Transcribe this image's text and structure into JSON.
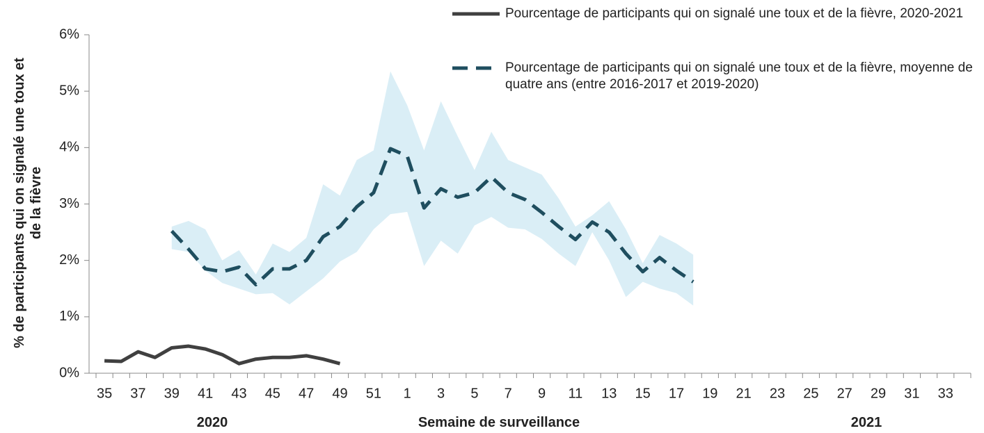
{
  "chart_data": {
    "type": "line",
    "ylabel": "% de participants qui on signalé une toux et de la fièvre",
    "xlabel": "Semaine de surveillance",
    "annotations": [
      "2020",
      "2021"
    ],
    "categories": [
      "35",
      null,
      "37",
      null,
      "39",
      null,
      "41",
      null,
      "43",
      null,
      "45",
      null,
      "47",
      null,
      "49",
      null,
      "51",
      null,
      "1",
      null,
      "3",
      null,
      "5",
      null,
      "7",
      null,
      "9",
      null,
      "11",
      null,
      "13",
      null,
      "15",
      null,
      "17",
      null,
      "19",
      null,
      "21",
      null,
      "23",
      null,
      "25",
      null,
      "27",
      null,
      "29",
      null,
      "31",
      null,
      "33",
      null
    ],
    "ylim": [
      0,
      6
    ],
    "yticks": [
      {
        "value": 0,
        "label": "0%"
      },
      {
        "value": 1,
        "label": "1%"
      },
      {
        "value": 2,
        "label": "2%"
      },
      {
        "value": 3,
        "label": "3%"
      },
      {
        "value": 4,
        "label": "4%"
      },
      {
        "value": 5,
        "label": "5%"
      },
      {
        "value": 6,
        "label": "6%"
      }
    ],
    "series": [
      {
        "name": "Pourcentage de participants qui on signalé une toux et de la fièvre, 2020-2021",
        "color": "#404040",
        "dash": false,
        "values": [
          0.22,
          0.21,
          0.38,
          0.28,
          0.45,
          0.48,
          0.43,
          0.33,
          0.17,
          0.25,
          0.28,
          0.28,
          0.31,
          0.25,
          0.17,
          null,
          null,
          null,
          null,
          null,
          null,
          null,
          null,
          null,
          null,
          null,
          null,
          null,
          null,
          null,
          null,
          null,
          null,
          null,
          null,
          null,
          null,
          null,
          null,
          null,
          null,
          null,
          null,
          null,
          null,
          null,
          null,
          null,
          null,
          null,
          null,
          null
        ]
      },
      {
        "name": "Pourcentage de participants qui on signalé une toux et de la fièvre, moyenne de quatre ans (entre 2016-2017 et 2019-2020)",
        "color": "#1f4e5f",
        "dash": true,
        "values": [
          null,
          null,
          null,
          null,
          2.52,
          2.2,
          1.85,
          1.8,
          1.88,
          1.57,
          1.85,
          1.85,
          2.0,
          2.42,
          2.6,
          2.95,
          3.2,
          3.98,
          3.85,
          2.93,
          3.27,
          3.12,
          3.2,
          3.48,
          3.2,
          3.08,
          2.85,
          2.6,
          2.37,
          2.68,
          2.5,
          2.12,
          1.8,
          2.05,
          1.82,
          1.62,
          null,
          null,
          null,
          null,
          null,
          null,
          null,
          null,
          null,
          null,
          null,
          null,
          null,
          null,
          null,
          null
        ]
      }
    ],
    "band": {
      "color": "#daeef6",
      "upper": [
        null,
        null,
        null,
        null,
        2.6,
        2.7,
        2.55,
        2.0,
        2.18,
        1.75,
        2.3,
        2.15,
        2.4,
        3.35,
        3.15,
        3.78,
        3.95,
        5.35,
        4.75,
        3.95,
        4.82,
        4.2,
        3.6,
        4.28,
        3.78,
        3.65,
        3.52,
        3.1,
        2.6,
        2.8,
        3.05,
        2.55,
        1.95,
        2.45,
        2.3,
        2.1,
        null,
        null,
        null,
        null,
        null,
        null,
        null,
        null,
        null,
        null,
        null,
        null,
        null,
        null,
        null,
        null
      ],
      "lower": [
        null,
        null,
        null,
        null,
        2.2,
        2.15,
        1.82,
        1.6,
        1.5,
        1.4,
        1.42,
        1.22,
        1.45,
        1.68,
        1.98,
        2.15,
        2.55,
        2.82,
        2.86,
        1.9,
        2.35,
        2.12,
        2.62,
        2.77,
        2.58,
        2.55,
        2.38,
        2.12,
        1.9,
        2.5,
        2.0,
        1.35,
        1.62,
        1.5,
        1.42,
        1.2,
        null,
        null,
        null,
        null,
        null,
        null,
        null,
        null,
        null,
        null,
        null,
        null,
        null,
        null,
        null,
        null
      ]
    }
  }
}
